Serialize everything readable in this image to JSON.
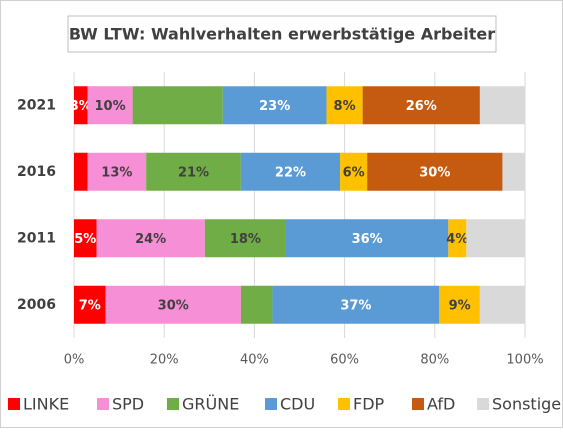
{
  "chart_data": {
    "type": "stacked-bar-horizontal",
    "title": "BW LTW: Wahlverhalten erwerbstätige Arbeiter",
    "categories": [
      "2021",
      "2016",
      "2011",
      "2006"
    ],
    "series": [
      {
        "name": "LINKE",
        "color": "#ff0000",
        "label_color": "#ffffff",
        "values": [
          3,
          3,
          5,
          7
        ],
        "value_labels": [
          "3%",
          null,
          "5%",
          "7%"
        ]
      },
      {
        "name": "SPD",
        "color": "#f78fd6",
        "label_color": "#404040",
        "values": [
          10,
          13,
          24,
          30
        ],
        "value_labels": [
          "10%",
          "13%",
          "24%",
          "30%"
        ]
      },
      {
        "name": "GRÜNE",
        "color": "#70ad47",
        "label_color": "#404040",
        "values": [
          20,
          21,
          18,
          7
        ],
        "value_labels": [
          null,
          "21%",
          "18%",
          null
        ]
      },
      {
        "name": "CDU",
        "color": "#5b9bd5",
        "label_color": "#ffffff",
        "values": [
          23,
          22,
          36,
          37
        ],
        "value_labels": [
          "23%",
          "22%",
          "36%",
          "37%"
        ]
      },
      {
        "name": "FDP",
        "color": "#ffc000",
        "label_color": "#404040",
        "values": [
          8,
          6,
          4,
          9
        ],
        "value_labels": [
          "8%",
          "6%",
          "4%",
          "9%"
        ]
      },
      {
        "name": "AfD",
        "color": "#c55a11",
        "label_color": "#ffffff",
        "values": [
          26,
          30,
          null,
          null
        ],
        "value_labels": [
          "26%",
          "30%",
          null,
          null
        ]
      },
      {
        "name": "Sonstige",
        "color": "#d9d9d9",
        "label_color": "#404040",
        "values": [
          10,
          5,
          13,
          10
        ],
        "value_labels": [
          null,
          null,
          null,
          null
        ]
      }
    ],
    "xlim": [
      0,
      100
    ],
    "xticks": [
      {
        "value": 0,
        "label": "0%"
      },
      {
        "value": 20,
        "label": "20%"
      },
      {
        "value": 40,
        "label": "40%"
      },
      {
        "value": 60,
        "label": "60%"
      },
      {
        "value": 80,
        "label": "80%"
      },
      {
        "value": 100,
        "label": "100%"
      }
    ],
    "grid": true,
    "legend": "bottom"
  }
}
